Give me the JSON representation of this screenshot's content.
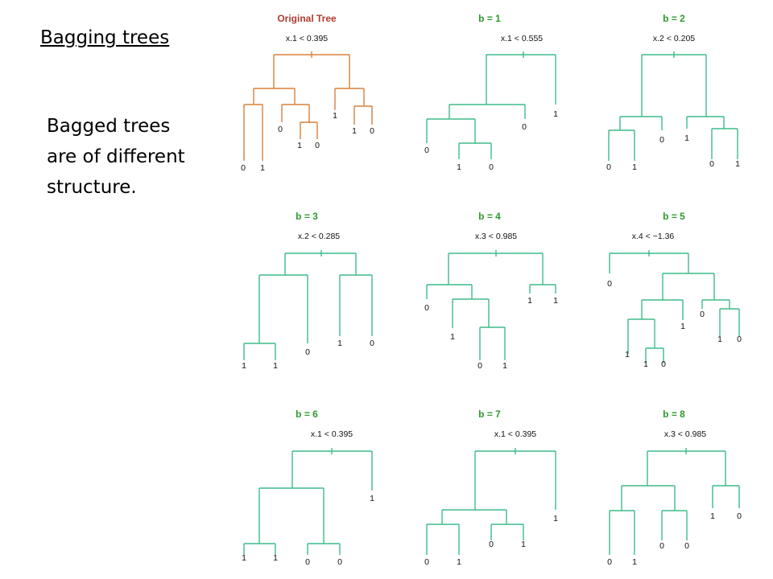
{
  "slide": {
    "title": "Bagging trees",
    "body_lines": [
      "Bagged trees",
      "are of different",
      "structure."
    ]
  },
  "colors": {
    "original": "#d8803a",
    "original_title": "#b03a2e",
    "bagged": "#3dbb88",
    "bagged_title": "#2e9a2e"
  },
  "trees": [
    {
      "title": "Original Tree",
      "split_label": "x.1 < 0.395",
      "color": "original",
      "leaves": [
        "0",
        "1",
        "0",
        "1",
        "0",
        "1",
        "1",
        "0"
      ]
    },
    {
      "title": "b = 1",
      "split_label": "x.1 < 0.555",
      "color": "bagged",
      "leaves": [
        "0",
        "1",
        "0",
        "0",
        "1"
      ]
    },
    {
      "title": "b = 2",
      "split_label": "x.2 < 0.205",
      "color": "bagged",
      "leaves": [
        "0",
        "1",
        "0",
        "1",
        "0",
        "1"
      ]
    },
    {
      "title": "b = 3",
      "split_label": "x.2 < 0.285",
      "color": "bagged",
      "leaves": [
        "1",
        "1",
        "0",
        "1",
        "0"
      ]
    },
    {
      "title": "b = 4",
      "split_label": "x.3 < 0.985",
      "color": "bagged",
      "leaves": [
        "0",
        "1",
        "0",
        "1",
        "1",
        "1"
      ]
    },
    {
      "title": "b = 5",
      "split_label": "x.4 < −1.36",
      "color": "bagged",
      "leaves": [
        "0",
        "1",
        "1",
        "0",
        "1",
        "0",
        "1",
        "0"
      ]
    },
    {
      "title": "b = 6",
      "split_label": "x.1 < 0.395",
      "color": "bagged",
      "leaves": [
        "1",
        "1",
        "0",
        "0",
        "1"
      ]
    },
    {
      "title": "b = 7",
      "split_label": "x.1 < 0.395",
      "color": "bagged",
      "leaves": [
        "0",
        "1",
        "0",
        "1",
        "1"
      ]
    },
    {
      "title": "b = 8",
      "split_label": "x.3 < 0.985",
      "color": "bagged",
      "leaves": [
        "0",
        "1",
        "0",
        "0",
        "1",
        "0"
      ]
    }
  ]
}
